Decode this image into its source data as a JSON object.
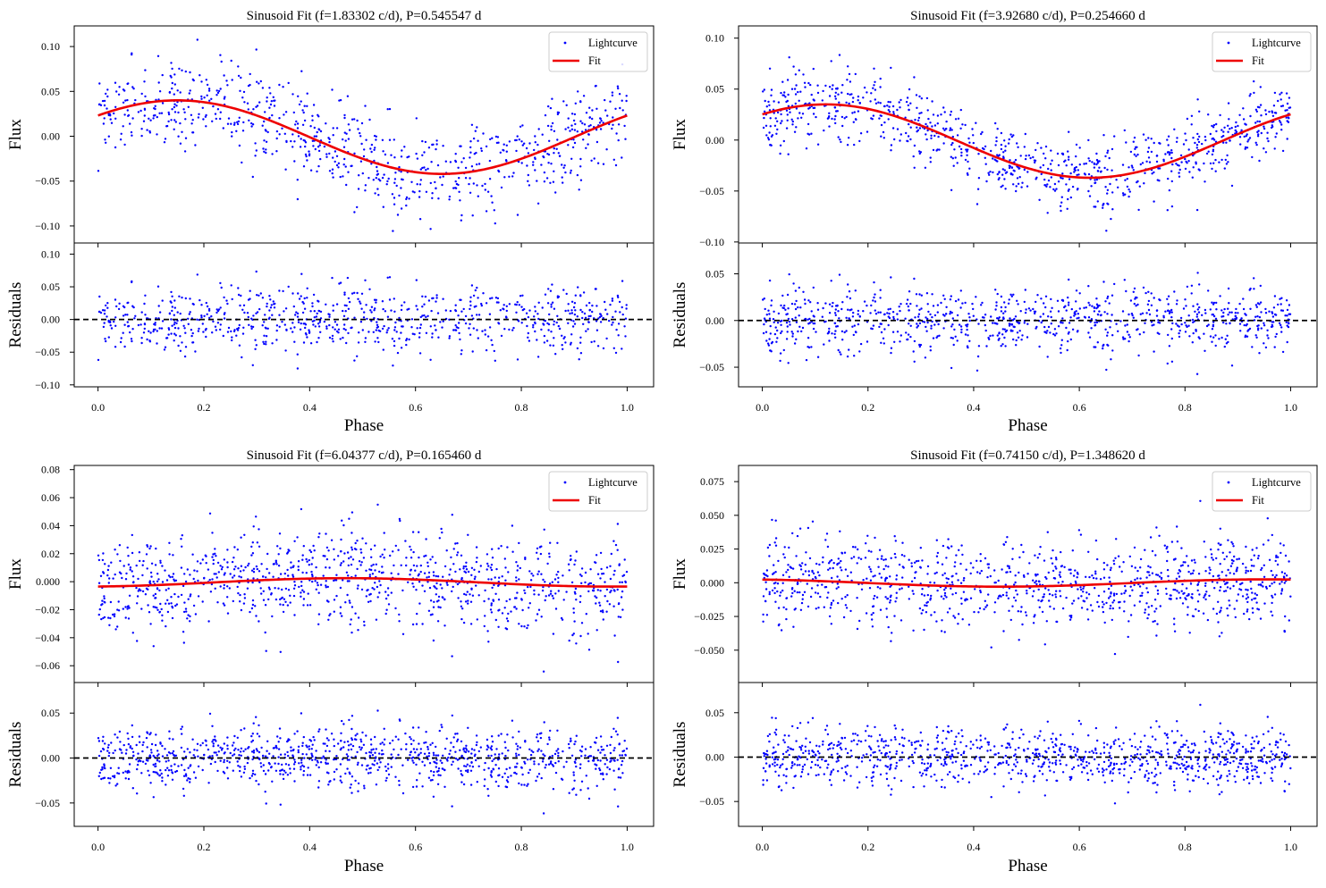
{
  "colors": {
    "points": "#0000ff",
    "fit": "#ee0000",
    "zero_line": "#000000",
    "axes": "#000000"
  },
  "chart_data": [
    {
      "type": "scatter",
      "title": "Sinusoid Fit (f=1.83302 c/d), P=0.545547 d",
      "xlabel": "Phase",
      "flux_ylabel": "Flux",
      "resid_ylabel": "Residuals",
      "xlim": [
        -0.045,
        1.05
      ],
      "xticks": [
        0.0,
        0.2,
        0.4,
        0.6,
        0.8,
        1.0
      ],
      "xtick_labels": [
        "0.0",
        "0.2",
        "0.4",
        "0.6",
        "0.8",
        "1.0"
      ],
      "flux_ylim": [
        -0.119,
        0.123
      ],
      "flux_yticks": [
        -0.1,
        -0.05,
        0.0,
        0.05,
        0.1
      ],
      "flux_ytick_labels": [
        "−0.10",
        "−0.05",
        "0.00",
        "0.05",
        "0.10"
      ],
      "resid_ylim": [
        -0.103,
        0.117
      ],
      "resid_yticks": [
        -0.1,
        -0.05,
        0.0,
        0.05,
        0.1
      ],
      "resid_ytick_labels": [
        "−0.10",
        "−0.05",
        "0.00",
        "0.05",
        "0.10"
      ],
      "fit": {
        "offset": -0.001,
        "amplitude": 0.041,
        "phase_of_max": 0.15
      },
      "scatter": {
        "n_points": 800,
        "noise": 0.033,
        "seed": 11
      },
      "legend": {
        "location": "upper right",
        "entries": [
          "Lightcurve",
          "Fit"
        ]
      },
      "zero_line": "dashed"
    },
    {
      "type": "scatter",
      "title": "Sinusoid Fit (f=3.92680 c/d), P=0.254660 d",
      "xlabel": "Phase",
      "flux_ylabel": "Flux",
      "resid_ylabel": "Residuals",
      "xlim": [
        -0.045,
        1.05
      ],
      "xticks": [
        0.0,
        0.2,
        0.4,
        0.6,
        0.8,
        1.0
      ],
      "xtick_labels": [
        "0.0",
        "0.2",
        "0.4",
        "0.6",
        "0.8",
        "1.0"
      ],
      "flux_ylim": [
        -0.101,
        0.112
      ],
      "flux_yticks": [
        -0.1,
        -0.05,
        0.0,
        0.05,
        0.1
      ],
      "flux_ytick_labels": [
        "−0.10",
        "−0.05",
        "0.00",
        "0.05",
        "0.10"
      ],
      "resid_ylim": [
        -0.071,
        0.083
      ],
      "resid_yticks": [
        -0.05,
        0.0,
        0.05
      ],
      "resid_ytick_labels": [
        "−0.05",
        "0.00",
        "0.05"
      ],
      "fit": {
        "offset": -0.001,
        "amplitude": 0.036,
        "phase_of_max": 0.12
      },
      "scatter": {
        "n_points": 900,
        "noise": 0.021,
        "seed": 23
      },
      "legend": {
        "location": "upper right",
        "entries": [
          "Lightcurve",
          "Fit"
        ]
      },
      "zero_line": "dashed"
    },
    {
      "type": "scatter",
      "title": "Sinusoid Fit (f=6.04377 c/d), P=0.165460 d",
      "xlabel": "Phase",
      "flux_ylabel": "Flux",
      "resid_ylabel": "Residuals",
      "xlim": [
        -0.045,
        1.05
      ],
      "xticks": [
        0.0,
        0.2,
        0.4,
        0.6,
        0.8,
        1.0
      ],
      "xtick_labels": [
        "0.0",
        "0.2",
        "0.4",
        "0.6",
        "0.8",
        "1.0"
      ],
      "flux_ylim": [
        -0.072,
        0.083
      ],
      "flux_yticks": [
        -0.06,
        -0.04,
        -0.02,
        0.0,
        0.02,
        0.04,
        0.06,
        0.08
      ],
      "flux_ytick_labels": [
        "−0.06",
        "−0.04",
        "−0.02",
        "0.000",
        "0.02",
        "0.04",
        "0.06",
        "0.08"
      ],
      "resid_ylim": [
        -0.076,
        0.084
      ],
      "resid_yticks": [
        -0.05,
        0.0,
        0.05
      ],
      "resid_ytick_labels": [
        "−0.05",
        "0.00",
        "0.05"
      ],
      "fit": {
        "offset": -0.0005,
        "amplitude": 0.003,
        "phase_of_max": 0.47
      },
      "scatter": {
        "n_points": 1000,
        "noise": 0.022,
        "seed": 37
      },
      "legend": {
        "location": "upper right",
        "entries": [
          "Lightcurve",
          "Fit"
        ]
      },
      "zero_line": "dashed"
    },
    {
      "type": "scatter",
      "title": "Sinusoid Fit (f=0.74150 c/d), P=1.348620 d",
      "xlabel": "Phase",
      "flux_ylabel": "Flux",
      "resid_ylabel": "Residuals",
      "xlim": [
        -0.045,
        1.05
      ],
      "xticks": [
        0.0,
        0.2,
        0.4,
        0.6,
        0.8,
        1.0
      ],
      "xtick_labels": [
        "0.0",
        "0.2",
        "0.4",
        "0.6",
        "0.8",
        "1.0"
      ],
      "flux_ylim": [
        -0.074,
        0.087
      ],
      "flux_yticks": [
        -0.05,
        -0.025,
        0.0,
        0.025,
        0.05,
        0.075
      ],
      "flux_ytick_labels": [
        "−0.050",
        "−0.025",
        "0.000",
        "0.025",
        "0.050",
        "0.075"
      ],
      "resid_ylim": [
        -0.078,
        0.084
      ],
      "resid_yticks": [
        -0.05,
        0.0,
        0.05
      ],
      "resid_ytick_labels": [
        "−0.05",
        "0.00",
        "0.05"
      ],
      "fit": {
        "offset": -0.0002,
        "amplitude": 0.0027,
        "phase_of_max": 0.95
      },
      "scatter": {
        "n_points": 1000,
        "noise": 0.021,
        "seed": 53
      },
      "legend": {
        "location": "upper right",
        "entries": [
          "Lightcurve",
          "Fit"
        ]
      },
      "zero_line": "dashed"
    }
  ]
}
